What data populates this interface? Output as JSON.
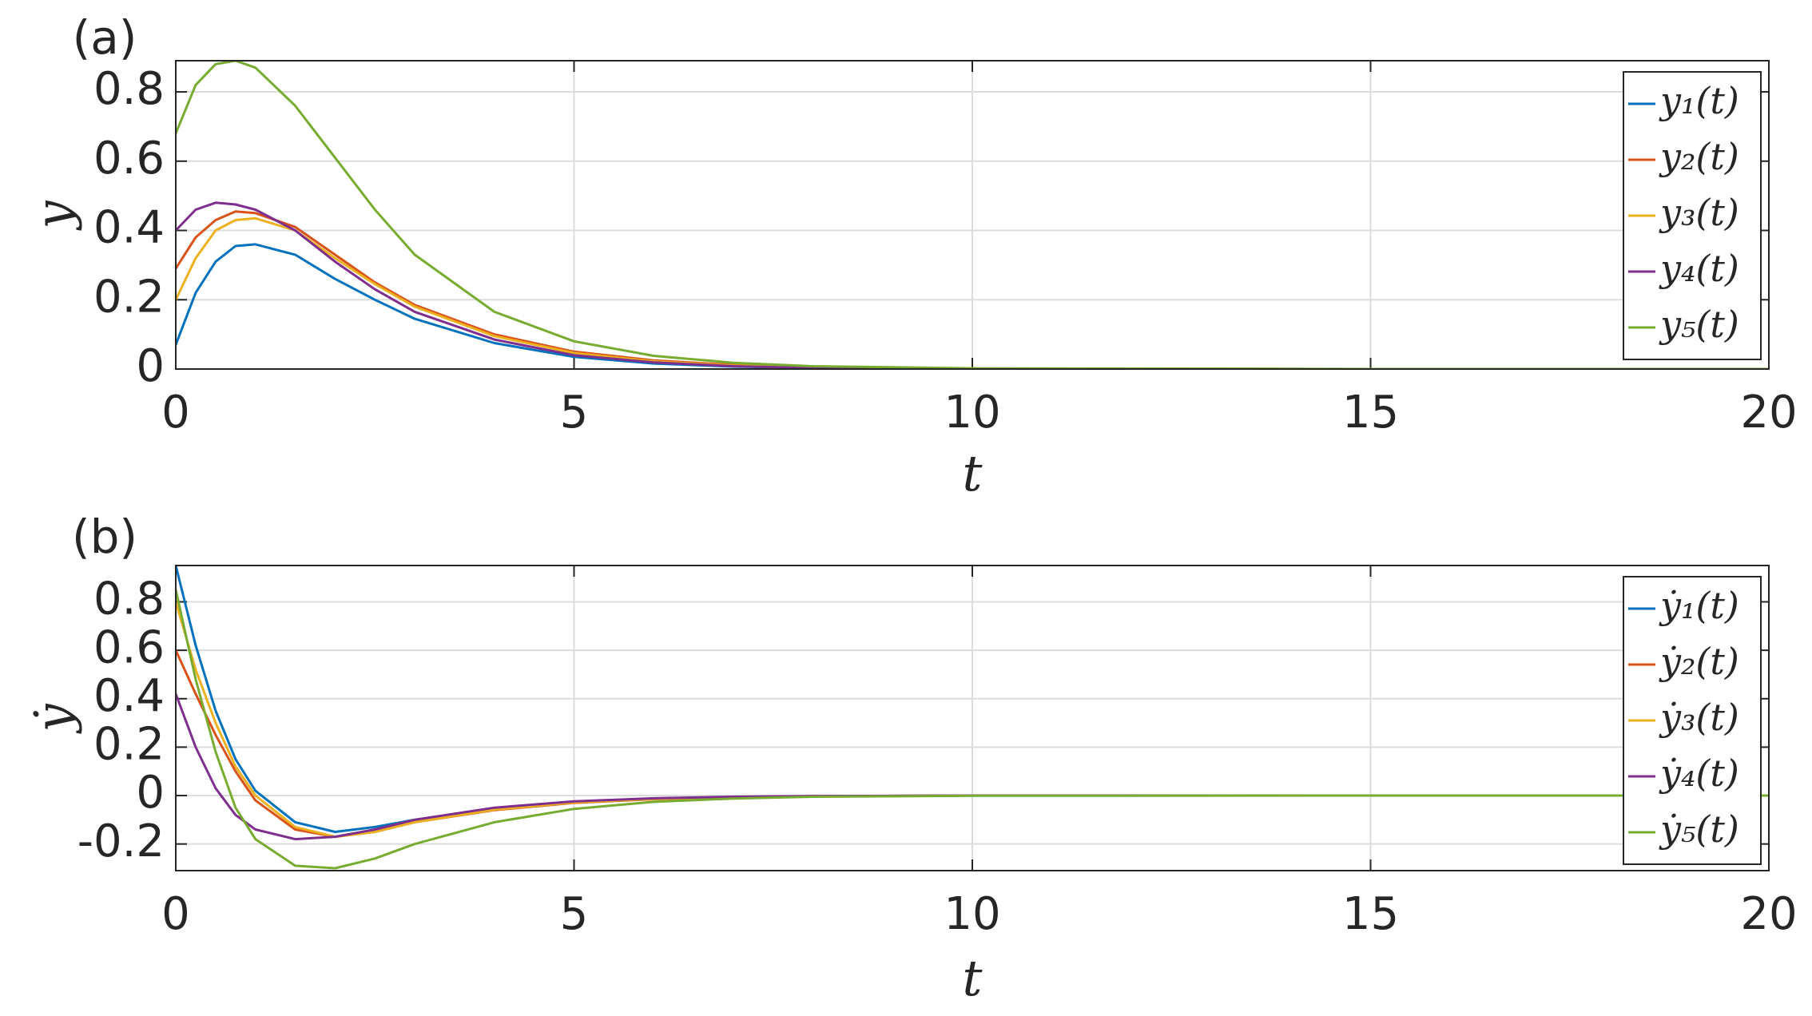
{
  "chart_data": [
    {
      "type": "line",
      "title": "(a)",
      "xlabel": "t",
      "ylabel": "y",
      "x": [
        0,
        0.25,
        0.5,
        0.75,
        1,
        1.5,
        2,
        2.5,
        3,
        4,
        5,
        6,
        7,
        8,
        10,
        15,
        20
      ],
      "xlim": [
        0,
        20
      ],
      "xticks": [
        0,
        5,
        10,
        15,
        20
      ],
      "ylim": [
        0,
        0.89
      ],
      "yticks": [
        0,
        0.2,
        0.4,
        0.6,
        0.8
      ],
      "grid": true,
      "legend": "northeast",
      "series": [
        {
          "name": "y₁(t)",
          "color": "#0072BD",
          "values": [
            0.07,
            0.22,
            0.31,
            0.355,
            0.36,
            0.33,
            0.26,
            0.2,
            0.145,
            0.075,
            0.035,
            0.016,
            0.007,
            0.003,
            0.0005,
            0,
            0
          ]
        },
        {
          "name": "y₂(t)",
          "color": "#D95319",
          "values": [
            0.29,
            0.38,
            0.43,
            0.455,
            0.45,
            0.41,
            0.33,
            0.25,
            0.185,
            0.1,
            0.05,
            0.025,
            0.012,
            0.005,
            0.001,
            0,
            0
          ]
        },
        {
          "name": "y₃(t)",
          "color": "#EDB120",
          "values": [
            0.2,
            0.32,
            0.4,
            0.43,
            0.435,
            0.4,
            0.32,
            0.245,
            0.18,
            0.095,
            0.046,
            0.022,
            0.01,
            0.004,
            0.001,
            0,
            0
          ]
        },
        {
          "name": "y₄(t)",
          "color": "#7E2F8E",
          "values": [
            0.4,
            0.46,
            0.48,
            0.475,
            0.46,
            0.4,
            0.31,
            0.23,
            0.165,
            0.085,
            0.04,
            0.019,
            0.008,
            0.003,
            0.0005,
            0,
            0
          ]
        },
        {
          "name": "y₅(t)",
          "color": "#77AC30",
          "values": [
            0.68,
            0.82,
            0.88,
            0.89,
            0.87,
            0.76,
            0.61,
            0.46,
            0.33,
            0.165,
            0.08,
            0.038,
            0.018,
            0.008,
            0.002,
            0,
            0
          ]
        }
      ]
    },
    {
      "type": "line",
      "title": "(b)",
      "xlabel": "t",
      "ylabel": "ẏ",
      "x": [
        0,
        0.25,
        0.5,
        0.75,
        1,
        1.5,
        2,
        2.5,
        3,
        4,
        5,
        6,
        7,
        8,
        10,
        15,
        20
      ],
      "xlim": [
        0,
        20
      ],
      "xticks": [
        0,
        5,
        10,
        15,
        20
      ],
      "ylim": [
        -0.31,
        0.95
      ],
      "yticks": [
        -0.2,
        0,
        0.2,
        0.4,
        0.6,
        0.8
      ],
      "grid": true,
      "legend": "northeast",
      "series": [
        {
          "name": "ẏ₁(t)",
          "color": "#0072BD",
          "values": [
            0.95,
            0.62,
            0.35,
            0.15,
            0.02,
            -0.11,
            -0.15,
            -0.13,
            -0.1,
            -0.055,
            -0.027,
            -0.013,
            -0.006,
            -0.003,
            0,
            0,
            0
          ]
        },
        {
          "name": "ẏ₂(t)",
          "color": "#D95319",
          "values": [
            0.6,
            0.42,
            0.25,
            0.1,
            -0.02,
            -0.14,
            -0.17,
            -0.15,
            -0.11,
            -0.06,
            -0.03,
            -0.015,
            -0.007,
            -0.003,
            0,
            0,
            0
          ]
        },
        {
          "name": "ẏ₃(t)",
          "color": "#EDB120",
          "values": [
            0.8,
            0.52,
            0.3,
            0.12,
            0,
            -0.13,
            -0.17,
            -0.15,
            -0.11,
            -0.058,
            -0.028,
            -0.014,
            -0.006,
            -0.003,
            0,
            0,
            0
          ]
        },
        {
          "name": "ẏ₄(t)",
          "color": "#7E2F8E",
          "values": [
            0.42,
            0.2,
            0.03,
            -0.08,
            -0.14,
            -0.18,
            -0.17,
            -0.14,
            -0.1,
            -0.05,
            -0.024,
            -0.011,
            -0.005,
            -0.002,
            0,
            0,
            0
          ]
        },
        {
          "name": "ẏ₅(t)",
          "color": "#77AC30",
          "values": [
            0.85,
            0.48,
            0.18,
            -0.05,
            -0.18,
            -0.29,
            -0.3,
            -0.26,
            -0.2,
            -0.11,
            -0.055,
            -0.026,
            -0.012,
            -0.005,
            -0.001,
            0,
            0
          ]
        }
      ]
    }
  ]
}
